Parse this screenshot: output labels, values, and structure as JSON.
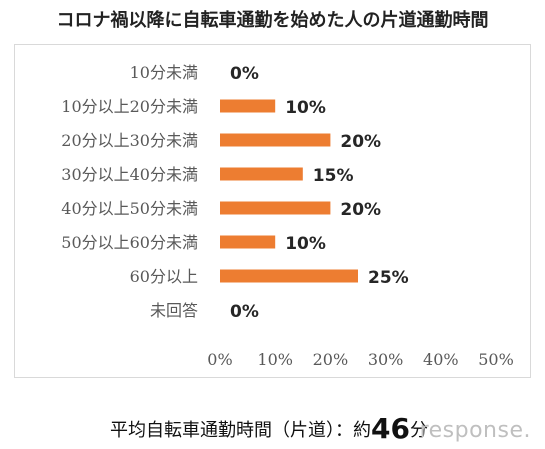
{
  "title": "コロナ禍以降に自転車通勤を始めた人の片道通勤時間",
  "footer": {
    "label": "平均自転車通勤時間（片道）：約",
    "value": "46",
    "unit": "分"
  },
  "watermark": "response.",
  "colors": {
    "bar": "#ED7D31",
    "grid": "#d9d9d9",
    "text": "#595959"
  },
  "chart_data": {
    "type": "bar",
    "orientation": "horizontal",
    "categories": [
      "10分未満",
      "10分以上20分未満",
      "20分以上30分未満",
      "30分以上40分未満",
      "40分以上50分未満",
      "50分以上60分未満",
      "60分以上",
      "未回答"
    ],
    "values": [
      0,
      10,
      20,
      15,
      20,
      10,
      25,
      0
    ],
    "data_labels": [
      "0%",
      "10%",
      "20%",
      "15%",
      "20%",
      "10%",
      "25%",
      "0%"
    ],
    "xlim": [
      0,
      50
    ],
    "x_ticks": [
      "0%",
      "10%",
      "20%",
      "30%",
      "40%",
      "50%"
    ],
    "grid": false
  }
}
